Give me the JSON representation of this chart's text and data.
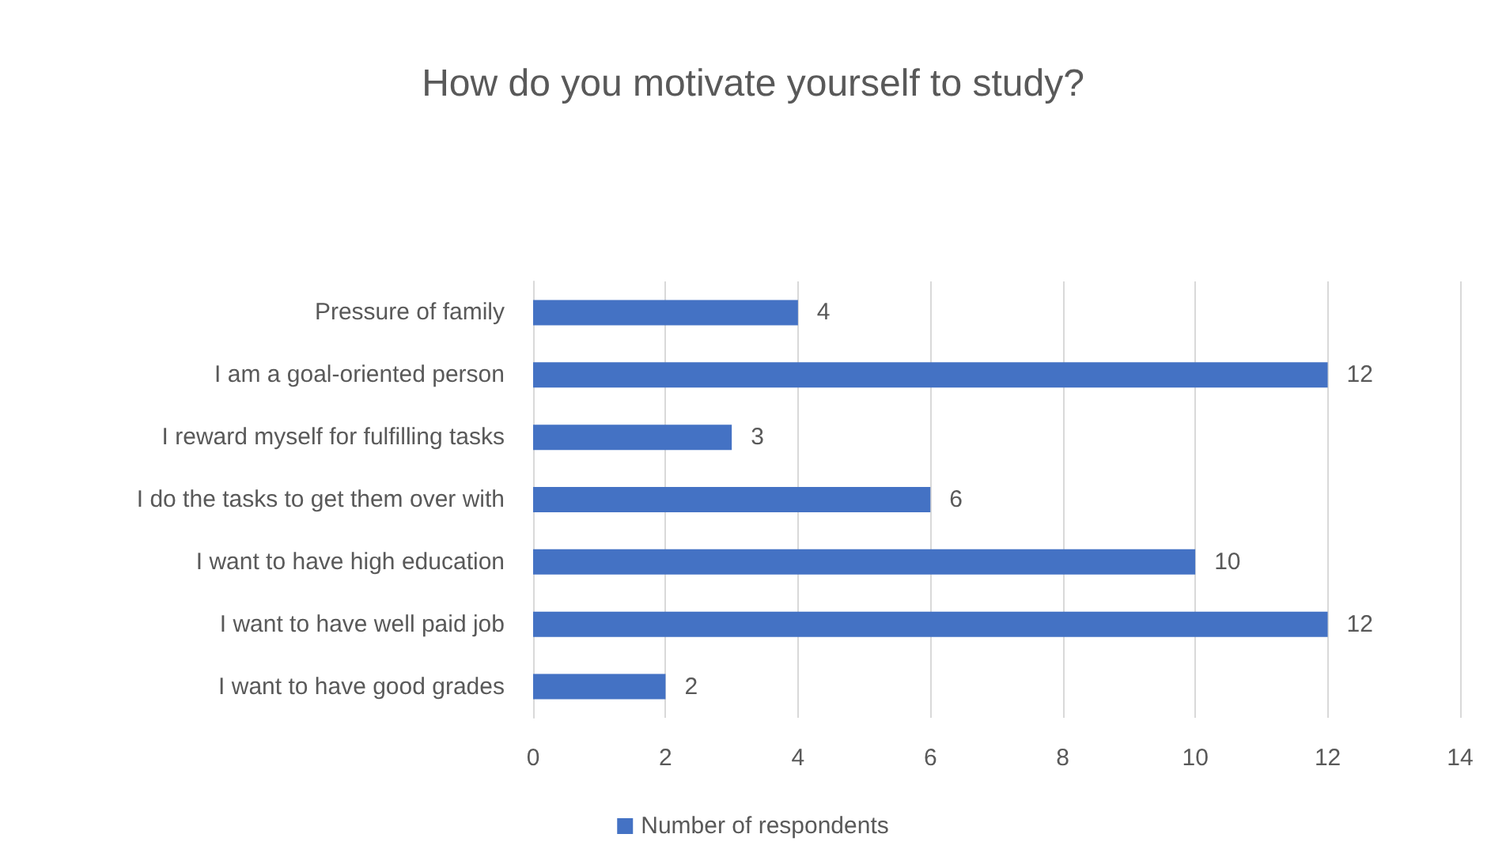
{
  "chart_data": {
    "type": "bar",
    "orientation": "horizontal",
    "title": "How do you motivate yourself to study?",
    "categories": [
      "Pressure of family",
      "I am a goal-oriented person",
      "I reward myself for fulfilling tasks",
      "I do the tasks to get them over with",
      "I want to have high education",
      "I want to have well paid job",
      "I want to have good grades"
    ],
    "series": [
      {
        "name": "Number of respondents",
        "color": "#4472c4",
        "values": [
          4,
          12,
          3,
          6,
          10,
          12,
          2
        ]
      }
    ],
    "xlim": [
      0,
      14
    ],
    "xticks": [
      0,
      2,
      4,
      6,
      8,
      10,
      12,
      14
    ],
    "grid": "x",
    "legend": "bottom",
    "data_labels": true
  }
}
